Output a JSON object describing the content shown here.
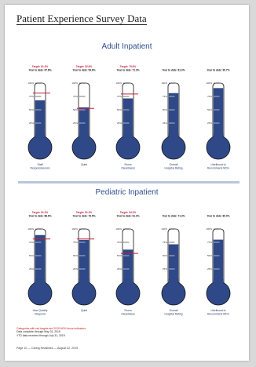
{
  "title": "Patient Experience Survey Data",
  "colors": {
    "fill": "#2f4988",
    "target": "#c4203a",
    "text_red": "#c01818",
    "divider": "#b8c6dc",
    "heading": "#2f4d8f"
  },
  "sections": [
    {
      "id": "adult",
      "title": "Adult Inpatient",
      "gauges": [
        {
          "target_line": "Target: 81.3%",
          "ytd_line": "Year to date: 67.8%",
          "label": [
            "Staff",
            "Responsiveness"
          ],
          "ytd": 67.8,
          "target": 81.3,
          "highlight": true
        },
        {
          "target_line": "Target: 52.6%",
          "ytd_line": "Year to date: 54.6%",
          "label": [
            "Quiet"
          ],
          "ytd": 54.6,
          "target": 52.6,
          "highlight": true
        },
        {
          "target_line": "Target: 79.6%",
          "ytd_line": "Year to date: 71.3%",
          "label": [
            "Room",
            "Cleanliness"
          ],
          "ytd": 71.3,
          "target": 79.6,
          "highlight": true
        },
        {
          "target_line": "",
          "ytd_line": "Year to date: 81.3%",
          "label": [
            "Overall",
            "Hospital Rating"
          ],
          "ytd": 81.3,
          "target": null,
          "highlight": false
        },
        {
          "target_line": "",
          "ytd_line": "Year to date: 90.7%",
          "label": [
            "Likelihood to",
            "Recommend MCH"
          ],
          "ytd": 90.7,
          "target": null,
          "highlight": false
        }
      ]
    },
    {
      "id": "pediatric",
      "title": "Pediatric Inpatient",
      "gauges": [
        {
          "target_line": "Target: 81.3%",
          "ytd_line": "Year to date: 88.6%",
          "label": [
            "How Quickly",
            "Respond"
          ],
          "ytd": 88.6,
          "target": 81.3,
          "highlight": true
        },
        {
          "target_line": "Target: 81.3%",
          "ytd_line": "Year to date: 79.5%",
          "label": [
            "Quiet"
          ],
          "ytd": 79.5,
          "target": 81.3,
          "highlight": true
        },
        {
          "target_line": "Target: 54.3%",
          "ytd_line": "Year to date: 61.3%",
          "label": [
            "Room",
            "Cleanliness"
          ],
          "ytd": 61.3,
          "target": 54.3,
          "highlight": true
        },
        {
          "target_line": "",
          "ytd_line": "Year to date: 71.3%",
          "label": [
            "Overall",
            "Hospital Rating"
          ],
          "ytd": 71.3,
          "target": null,
          "highlight": false
        },
        {
          "target_line": "",
          "ytd_line": "Year to date: 80.0%",
          "label": [
            "Likelihood to",
            "Recommend MCH"
          ],
          "ytd": 80.0,
          "target": null,
          "highlight": false
        }
      ]
    }
  ],
  "scale_ticks": [
    "100%",
    "75%",
    "50%",
    "25%"
  ],
  "notes": {
    "red": "Categories with red targets are 2019 MCH focus indicators.",
    "line2": "Data complete through May 31, 2019.",
    "line3": "YTD data received through July 31, 2019."
  },
  "footer": "Page 10 — Caring Headlines — August 22, 2019"
}
